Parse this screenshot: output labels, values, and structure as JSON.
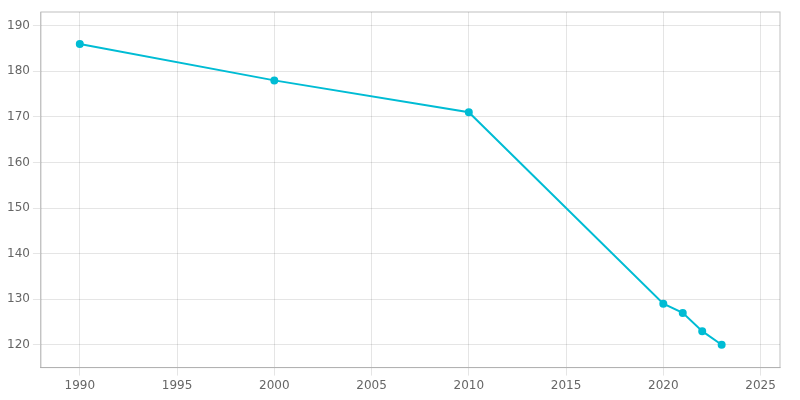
{
  "chart_data": {
    "type": "line",
    "x": [
      1990,
      2000,
      2010,
      2020,
      2021,
      2022,
      2023
    ],
    "values": [
      186,
      178,
      171,
      129,
      127,
      123,
      120
    ],
    "color": "#00BCD4",
    "marker": "circle",
    "xlim": [
      1988,
      2026
    ],
    "ylim": [
      115,
      193
    ],
    "xticks": [
      1990,
      1995,
      2000,
      2005,
      2010,
      2015,
      2020,
      2025
    ],
    "yticks": [
      120,
      130,
      140,
      150,
      160,
      170,
      180,
      190
    ],
    "grid": true
  }
}
